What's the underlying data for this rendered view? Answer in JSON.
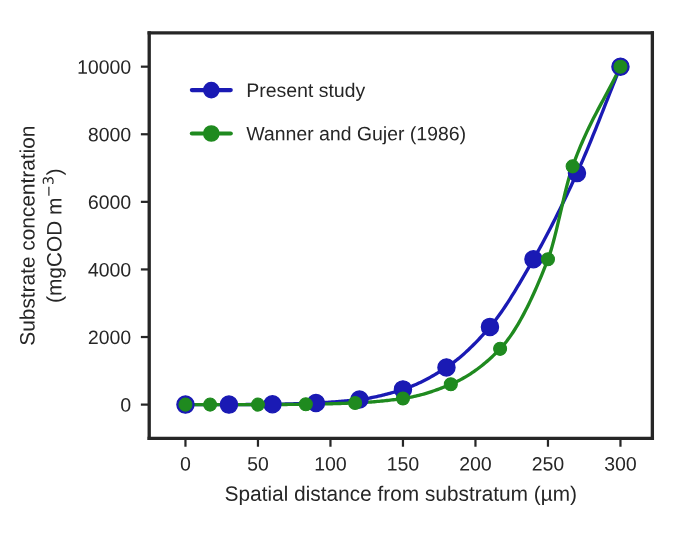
{
  "chart_data": {
    "type": "line",
    "xlabel": "Spatial distance from substratum (µm)",
    "ylabel": "Substrate concentration\n(mgCOD m$^{−3}$)",
    "xlim": [
      -25,
      322
    ],
    "ylim": [
      -1000,
      11000
    ],
    "xticks": [
      0,
      50,
      100,
      150,
      200,
      250,
      300
    ],
    "yticks": [
      0,
      2000,
      4000,
      6000,
      8000,
      10000
    ],
    "marker": "circle",
    "line_style": "solid",
    "legend": "top left",
    "grid": false,
    "series": [
      {
        "name": "Present study",
        "color": "#1a1ab4",
        "x": [
          0,
          30,
          60,
          90,
          120,
          150,
          180,
          210,
          240,
          270,
          300
        ],
        "values": [
          0,
          0,
          10,
          50,
          150,
          450,
          1100,
          2300,
          4300,
          6850,
          10000
        ]
      },
      {
        "name": "Wanner and Gujer (1986)",
        "color": "#1f8a1f",
        "x": [
          0,
          17,
          50,
          83,
          117,
          150,
          183,
          217,
          250,
          267,
          300
        ],
        "values": [
          0,
          0,
          0,
          10,
          50,
          180,
          600,
          1650,
          4300,
          7050,
          10000
        ]
      }
    ]
  }
}
